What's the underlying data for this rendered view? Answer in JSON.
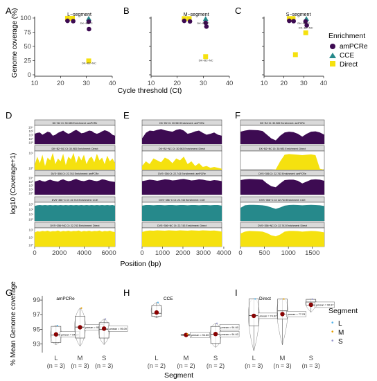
{
  "panel_letters": [
    "A",
    "B",
    "C",
    "D",
    "E",
    "F",
    "G",
    "H",
    "I"
  ],
  "row1": {
    "ylabel": "Genome coverage (%)",
    "xlabel": "Cycle threshold (Ct)",
    "legend_title": "Enrichment",
    "legend": [
      {
        "name": "amPCRe",
        "color": "#3d0b52",
        "shape": "circle"
      },
      {
        "name": "CCE",
        "color": "#26898b",
        "shape": "triangle"
      },
      {
        "name": "Direct",
        "color": "#f5e10f",
        "shape": "square"
      }
    ]
  },
  "row2": {
    "ylabel": "log10 (Coverage+1)",
    "xlabel": "Position (bp)"
  },
  "row3": {
    "ylabel": "% Mean Genome coverage",
    "xlabel": "Segment",
    "legend_title": "Segment",
    "legend": [
      {
        "name": "L",
        "color": "#56b4e9"
      },
      {
        "name": "M",
        "color": "#e69f00"
      },
      {
        "name": "S",
        "color": "#9999cc"
      }
    ]
  },
  "chart_data": [
    {
      "panel": "A",
      "type": "scatter",
      "title": "L−segment",
      "xlabel": "Cycle threshold (Ct)",
      "ylabel": "Genome coverage (%)",
      "xlim": [
        10,
        40
      ],
      "ylim": [
        0,
        100
      ],
      "xticks": [
        "10",
        "20",
        "30",
        "40"
      ],
      "yticks": [
        "0",
        "25",
        "50",
        "75",
        "100"
      ],
      "points": [
        {
          "enrichment": "Direct",
          "x": 22.7,
          "y": 99.5
        },
        {
          "enrichment": "Direct",
          "x": 24.6,
          "y": 99.5
        },
        {
          "enrichment": "amPCRe",
          "x": 22.7,
          "y": 95.0
        },
        {
          "enrichment": "amPCRe",
          "x": 24.9,
          "y": 94.5
        },
        {
          "enrichment": "CCE",
          "x": 30.9,
          "y": 99.0
        },
        {
          "enrichment": "amPCRe",
          "x": 30.9,
          "y": 93.5
        },
        {
          "enrichment": "amPCRe",
          "x": 31.0,
          "y": 80.5
        },
        {
          "enrichment": "Direct",
          "x": 30.9,
          "y": 24.5
        }
      ],
      "point_labels": [
        {
          "text": "DK−B2−NC",
          "x": 31,
          "y": 19
        },
        {
          "text": "DK−B2−C",
          "x": 30,
          "y": 89
        }
      ]
    },
    {
      "panel": "B",
      "type": "scatter",
      "title": "M−segment",
      "xlim": [
        10,
        40
      ],
      "ylim": [
        0,
        100
      ],
      "xticks": [
        "10",
        "20",
        "30",
        "40"
      ],
      "points": [
        {
          "enrichment": "Direct",
          "x": 22.7,
          "y": 99.0
        },
        {
          "enrichment": "Direct",
          "x": 24.6,
          "y": 99.0
        },
        {
          "enrichment": "amPCRe",
          "x": 22.7,
          "y": 95.0
        },
        {
          "enrichment": "amPCRe",
          "x": 24.9,
          "y": 94.0
        },
        {
          "enrichment": "CCE",
          "x": 30.9,
          "y": 98.5
        },
        {
          "enrichment": "amPCRe",
          "x": 30.9,
          "y": 91.5
        },
        {
          "enrichment": "amPCRe",
          "x": 31.2,
          "y": 85.0
        },
        {
          "enrichment": "Direct",
          "x": 30.9,
          "y": 32.0
        }
      ],
      "point_labels": [
        {
          "text": "DK−B2−NC",
          "x": 31,
          "y": 24
        },
        {
          "text": "DK−B2−C",
          "x": 30,
          "y": 89
        }
      ]
    },
    {
      "panel": "C",
      "type": "scatter",
      "title": "S−segment",
      "xlim": [
        10,
        40
      ],
      "ylim": [
        0,
        100
      ],
      "xticks": [
        "10",
        "20",
        "30",
        "40"
      ],
      "points": [
        {
          "enrichment": "Direct",
          "x": 22.7,
          "y": 99.0
        },
        {
          "enrichment": "Direct",
          "x": 24.6,
          "y": 99.0
        },
        {
          "enrichment": "amPCRe",
          "x": 22.7,
          "y": 95.0
        },
        {
          "enrichment": "amPCRe",
          "x": 24.9,
          "y": 94.5
        },
        {
          "enrichment": "CCE",
          "x": 31.3,
          "y": 98.5
        },
        {
          "enrichment": "amPCRe",
          "x": 30.9,
          "y": 94.0
        },
        {
          "enrichment": "amPCRe",
          "x": 31.5,
          "y": 87.0
        },
        {
          "enrichment": "Direct",
          "x": 31.0,
          "y": 74.0
        },
        {
          "enrichment": "Direct",
          "x": 25.8,
          "y": 35.5
        }
      ],
      "point_labels": [
        {
          "text": "DK−B2−NC",
          "x": 31,
          "y": 81
        },
        {
          "text": "DK−B2−C",
          "x": 30,
          "y": 89
        }
      ]
    },
    {
      "panel": "D",
      "type": "area",
      "xmax": 6500,
      "xticks": [
        0,
        2000,
        4000,
        6000
      ],
      "facets": [
        {
          "strip": "DK−B2  Ct: 30.983  Enrichment: amPCRe",
          "color": "#3d0b52",
          "yticks": [
            "10⁴",
            "10³",
            "10²",
            "10¹",
            "10⁰"
          ],
          "profile": [
            0.55,
            0.6,
            0.62,
            0.5,
            0.58,
            0.66,
            0.62,
            0.45,
            0.5,
            0.6,
            0.66,
            0.72,
            0.62,
            0.55,
            0.6,
            0.7,
            0.76,
            0.68,
            0.58,
            0.6,
            0.66,
            0.72,
            0.7,
            0.6,
            0.55,
            0.6,
            0.68,
            0.74,
            0.7,
            0.62,
            0.5,
            0.45
          ]
        },
        {
          "strip": "DK−B2−NC  Ct: 30.983  Enrichment: Direct",
          "color": "#f5e10f",
          "yticks": [
            "10¹",
            "10⁰"
          ],
          "profile": [
            0.25,
            0.7,
            0.35,
            0.8,
            0.2,
            0.65,
            0.5,
            0.9,
            0.3,
            0.6,
            0.45,
            0.85,
            0.25,
            0.7,
            0.55,
            0.9,
            0.35,
            0.75,
            0.5,
            0.8,
            0.3,
            0.6,
            0.7,
            0.4,
            0.85,
            0.5,
            0.65,
            0.3,
            0.75,
            0.45,
            0.6,
            0.35
          ]
        },
        {
          "strip": "DVS−356  Ct: 22.743  Enrichment: amPCRe",
          "color": "#3d0b52",
          "yticks": [
            "10⁴",
            "10³",
            "10²",
            "10¹",
            "10⁰"
          ],
          "profile": [
            0.7,
            0.74,
            0.78,
            0.72,
            0.7,
            0.76,
            0.8,
            0.75,
            0.72,
            0.7,
            0.78,
            0.82,
            0.76,
            0.72,
            0.74,
            0.8,
            0.84,
            0.78,
            0.74,
            0.72,
            0.76,
            0.8,
            0.78,
            0.74,
            0.72,
            0.76,
            0.82,
            0.8,
            0.76,
            0.72,
            0.7,
            0.68
          ]
        },
        {
          "strip": "DVS−356−C  Ct: 22.743  Enrichment: CCE",
          "color": "#26898b",
          "yticks": [
            "10³",
            "10²",
            "10¹",
            "10⁰"
          ],
          "profile": [
            0.8,
            0.84,
            0.85,
            0.84,
            0.85,
            0.84,
            0.85,
            0.84,
            0.85,
            0.84,
            0.85,
            0.84,
            0.85,
            0.84,
            0.85,
            0.84,
            0.85,
            0.84,
            0.85,
            0.84,
            0.85,
            0.84,
            0.85,
            0.84,
            0.85,
            0.84,
            0.85,
            0.84,
            0.85,
            0.84,
            0.85,
            0.82
          ]
        },
        {
          "strip": "DVS−356−NC  Ct: 22.743  Enrichment: Direct",
          "color": "#f5e10f",
          "yticks": [
            "10²",
            "10¹",
            "10⁰"
          ],
          "profile": [
            0.75,
            0.82,
            0.8,
            0.84,
            0.82,
            0.85,
            0.8,
            0.83,
            0.82,
            0.86,
            0.8,
            0.84,
            0.82,
            0.85,
            0.81,
            0.84,
            0.83,
            0.86,
            0.8,
            0.84,
            0.82,
            0.85,
            0.81,
            0.84,
            0.83,
            0.86,
            0.8,
            0.84,
            0.82,
            0.85,
            0.8,
            0.78
          ]
        }
      ]
    },
    {
      "panel": "E",
      "type": "area",
      "xmax": 3900,
      "xticks": [
        0,
        1000,
        2000,
        3000,
        4000
      ],
      "facets": [
        {
          "strip": "DK−B2  Ct: 30.983  Enrichment: amPCRe",
          "color": "#3d0b52",
          "profile": [
            0.3,
            0.6,
            0.72,
            0.7,
            0.76,
            0.8,
            0.74,
            0.7,
            0.66,
            0.76,
            0.8,
            0.72,
            0.55,
            0.6,
            0.68,
            0.72,
            0.6,
            0.5,
            0.55,
            0.62,
            0.5,
            0.45
          ]
        },
        {
          "strip": "DK−B2−NC  Ct: 30.983  Enrichment: Direct",
          "color": "#f5e10f",
          "profile": [
            0.2,
            0.45,
            0.3,
            0.6,
            0.5,
            0.4,
            0.65,
            0.55,
            0.35,
            0.6,
            0.5,
            0.7,
            0.3,
            0.45,
            0.2,
            0.35,
            0.15,
            0.2,
            0.1,
            0.15,
            0.1,
            0.05
          ]
        },
        {
          "strip": "DVS−356  Ct: 22.743  Enrichment: amPCRe",
          "color": "#3d0b52",
          "profile": [
            0.72,
            0.76,
            0.8,
            0.78,
            0.74,
            0.78,
            0.82,
            0.8,
            0.76,
            0.78,
            0.82,
            0.84,
            0.8,
            0.76,
            0.78,
            0.82,
            0.8,
            0.76,
            0.74,
            0.78,
            0.76,
            0.72
          ]
        },
        {
          "strip": "DVS−356−C  Ct: 22.743  Enrichment: CCE",
          "color": "#26898b",
          "profile": [
            0.82,
            0.85,
            0.85,
            0.84,
            0.85,
            0.85,
            0.84,
            0.85,
            0.85,
            0.84,
            0.85,
            0.85,
            0.84,
            0.85,
            0.85,
            0.84,
            0.85,
            0.85,
            0.84,
            0.85,
            0.85,
            0.82
          ]
        },
        {
          "strip": "DVS−356−NC  Ct: 22.743  Enrichment: Direct",
          "color": "#f5e10f",
          "profile": [
            0.78,
            0.84,
            0.86,
            0.85,
            0.87,
            0.86,
            0.85,
            0.87,
            0.86,
            0.85,
            0.87,
            0.86,
            0.85,
            0.87,
            0.86,
            0.85,
            0.87,
            0.86,
            0.85,
            0.86,
            0.84,
            0.8
          ]
        }
      ]
    },
    {
      "panel": "F",
      "type": "area",
      "xmax": 1750,
      "xticks": [
        0,
        500,
        1000,
        1500
      ],
      "facets": [
        {
          "strip": "DK−B2  Ct: 30.983  Enrichment: amPCRe",
          "color": "#3d0b52",
          "profile": [
            0.66,
            0.72,
            0.76,
            0.75,
            0.74,
            0.7,
            0.5,
            0.3,
            0.2,
            0.45,
            0.62,
            0.66,
            0.64,
            0.55,
            0.4,
            0.55,
            0.66,
            0.68,
            0.62,
            0.5
          ]
        },
        {
          "strip": "DK−B2−NC  Ct: 30.983  Enrichment: Direct",
          "color": "#f5e10f",
          "profile": [
            0,
            0,
            0,
            0,
            0,
            0,
            0,
            0,
            0.02,
            0.45,
            0.8,
            0.84,
            0.82,
            0.8,
            0.78,
            0.8,
            0.82,
            0.78,
            0.05,
            0
          ]
        },
        {
          "strip": "DVS−356  Ct: 22.743  Enrichment: amPCRe",
          "color": "#3d0b52",
          "profile": [
            0.78,
            0.82,
            0.84,
            0.83,
            0.82,
            0.8,
            0.6,
            0.45,
            0.4,
            0.6,
            0.78,
            0.8,
            0.8,
            0.74,
            0.6,
            0.7,
            0.8,
            0.82,
            0.8,
            0.74
          ]
        },
        {
          "strip": "DVS−356−C  Ct: 22.743  Enrichment: CCE",
          "color": "#26898b",
          "profile": [
            0.7,
            0.84,
            0.86,
            0.86,
            0.85,
            0.84,
            0.8,
            0.72,
            0.65,
            0.72,
            0.82,
            0.85,
            0.86,
            0.85,
            0.84,
            0.85,
            0.86,
            0.85,
            0.84,
            0.8
          ]
        },
        {
          "strip": "DVS−356−NC  Ct: 22.743  Enrichment: Direct",
          "color": "#f5e10f",
          "profile": [
            0.7,
            0.8,
            0.84,
            0.83,
            0.82,
            0.8,
            0.72,
            0.6,
            0.55,
            0.65,
            0.8,
            0.84,
            0.84,
            0.83,
            0.8,
            0.82,
            0.84,
            0.83,
            0.8,
            0.76
          ]
        }
      ]
    },
    {
      "panel": "G",
      "type": "box",
      "title": "amPCRe",
      "ylim": [
        92,
        99.2
      ],
      "yticks": [
        93,
        95,
        97,
        99
      ],
      "categories": [
        "L",
        "M",
        "S"
      ],
      "counts": [
        "(n = 3)",
        "(n = 3)",
        "(n = 3)"
      ],
      "boxes": [
        {
          "segment": "L",
          "min": 92.9,
          "q1": 93.2,
          "median": 94.2,
          "q3": 95.4,
          "max": 95.5,
          "mean": 94.3,
          "mean_label": "μmean = 94.30"
        },
        {
          "segment": "M",
          "min": 92.7,
          "q1": 93.8,
          "median": 95.3,
          "q3": 96.8,
          "max": 97.9,
          "mean": 95.27,
          "mean_label": "μmean = 95.27"
        },
        {
          "segment": "S",
          "min": 92.9,
          "q1": 93.8,
          "median": 95.0,
          "q3": 95.9,
          "max": 96.4,
          "mean": 95.09,
          "mean_label": "μmean = 95.09"
        }
      ]
    },
    {
      "panel": "H",
      "type": "box",
      "title": "CCE",
      "categories": [
        "L",
        "M",
        "S"
      ],
      "counts": [
        "(n = 2)",
        "(n = 2)",
        "(n = 2)"
      ],
      "boxes": [
        {
          "segment": "L",
          "min": 96.7,
          "q1": 96.9,
          "median": 97.3,
          "q3": 98.3,
          "max": 98.7,
          "mean": 97.4
        },
        {
          "segment": "M",
          "min": 94.4,
          "q1": 94.45,
          "median": 94.5,
          "q3": 94.55,
          "max": 94.6,
          "mean": 94.5
        },
        {
          "segment": "S",
          "min": 92.9,
          "q1": 93.4,
          "median": 94.6,
          "q3": 95.6,
          "max": 96.0,
          "mean": 94.62,
          "mean_label": "μmean = 94.62"
        }
      ],
      "extra_labels": [
        "μmean = 94.60",
        "μmean = 94.60"
      ]
    },
    {
      "panel": "I",
      "type": "box",
      "title": "Direct",
      "categories": [
        "L",
        "M",
        "S"
      ],
      "counts": [
        "(n = 3)",
        "(n = 3)",
        "(n = 3)"
      ],
      "boxes": [
        {
          "segment": "L",
          "min": 23,
          "q1": 60,
          "median": 75,
          "q3": 99.5,
          "max": 99.6,
          "mean": 74.67,
          "mean_label": "μmean = 74.67"
        },
        {
          "segment": "M",
          "min": 32,
          "q1": 70,
          "median": 82,
          "q3": 99.3,
          "max": 99.5,
          "mean": 77.23,
          "mean_label": "μmean = 77.23"
        },
        {
          "segment": "S",
          "min": 80,
          "q1": 90,
          "median": 95,
          "q3": 99.0,
          "max": 99.2,
          "mean": 90.97,
          "mean_label": "μmean = 90.97"
        }
      ]
    }
  ]
}
